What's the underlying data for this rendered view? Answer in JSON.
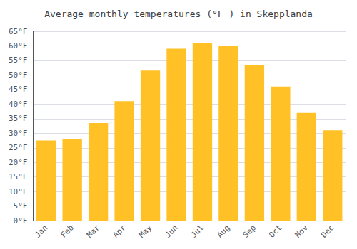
{
  "chart_data": {
    "type": "bar",
    "title": "Average monthly temperatures (°F ) in Skepplanda",
    "categories": [
      "Jan",
      "Feb",
      "Mar",
      "Apr",
      "May",
      "Jun",
      "Jul",
      "Aug",
      "Sep",
      "Oct",
      "Nov",
      "Dec"
    ],
    "values": [
      27.5,
      28.0,
      33.5,
      41.0,
      51.5,
      59.0,
      61.0,
      60.0,
      53.5,
      46.0,
      37.0,
      31.0
    ],
    "color": "#FFC125",
    "ylim": [
      0,
      65
    ],
    "yticks": [
      {
        "value": 0,
        "label": "0°F"
      },
      {
        "value": 5,
        "label": "5°F"
      },
      {
        "value": 10,
        "label": "10°F"
      },
      {
        "value": 15,
        "label": "15°F"
      },
      {
        "value": 20,
        "label": "20°F"
      },
      {
        "value": 25,
        "label": "25°F"
      },
      {
        "value": 30,
        "label": "30°F"
      },
      {
        "value": 35,
        "label": "35°F"
      },
      {
        "value": 40,
        "label": "40°F"
      },
      {
        "value": 45,
        "label": "45°F"
      },
      {
        "value": 50,
        "label": "50°F"
      },
      {
        "value": 55,
        "label": "55°F"
      },
      {
        "value": 60,
        "label": "60°F"
      },
      {
        "value": 65,
        "label": "65°F"
      }
    ],
    "grid": true
  }
}
